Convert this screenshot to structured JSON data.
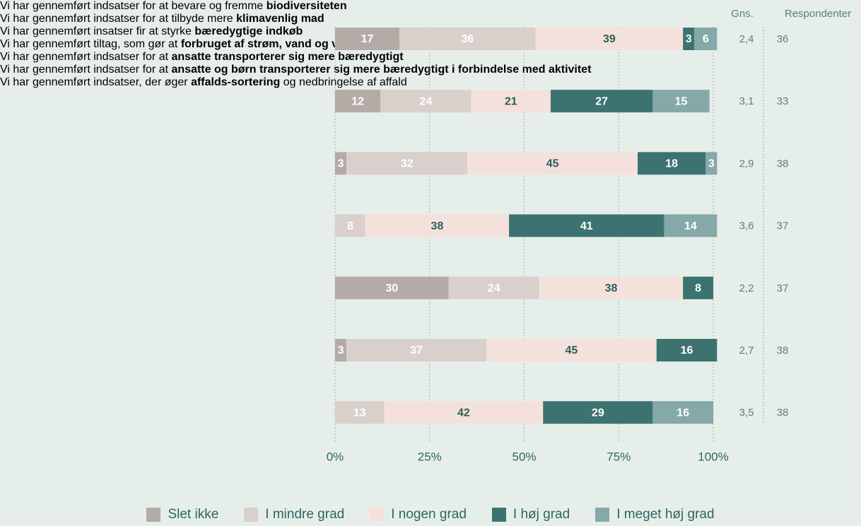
{
  "chart_data": {
    "type": "stacked-barh",
    "categories": [
      [
        "Vi har gennemført indsatser for at bevare og fremme",
        "biodiversiteten"
      ],
      [
        "Vi har gennemført indsatser for at tilbyde mere",
        "klimavenlig mad"
      ],
      [
        "Vi har gennemført insatser fir at styrke",
        "bæredygtige indkøb"
      ],
      [
        "Vi har gennemført tiltag, som gør at",
        "forbruget af strøm, vand og varme er mere klimavenligt"
      ],
      [
        "Vi har gennemført indsatser for at",
        "ansatte transporterer sig mere bæredygtigt"
      ],
      [
        "Vi har gennemført indsatser for at",
        "ansatte og børn transporterer sig mere bæredygtigt i forbindelse med aktivitet"
      ],
      [
        "Vi har gennemført indsatser, der øger",
        "affalds-sortering",
        "og nedbringelse af affald"
      ]
    ],
    "series": [
      {
        "name": "Slet ikke",
        "color": "#b4aba7",
        "label_color": "#ffffff",
        "values": [
          17,
          12,
          3,
          null,
          30,
          3,
          null
        ]
      },
      {
        "name": "I mindre grad",
        "color": "#d9d0cc",
        "label_color": "#ffffff",
        "values": [
          36,
          24,
          32,
          8,
          24,
          37,
          13
        ]
      },
      {
        "name": "I nogen grad",
        "color": "#f5e1db",
        "label_color": "#2d5e5c",
        "values": [
          39,
          21,
          45,
          38,
          38,
          45,
          42
        ]
      },
      {
        "name": "I høj grad",
        "color": "#3c7371",
        "label_color": "#ffffff",
        "values": [
          3,
          27,
          18,
          41,
          8,
          16,
          29
        ]
      },
      {
        "name": "I meget høj grad",
        "color": "#85a8a8",
        "label_color": "#ffffff",
        "values": [
          6,
          15,
          3,
          14,
          null,
          null,
          16
        ]
      }
    ],
    "xlim": [
      0,
      100
    ],
    "xticks": [
      {
        "value": 0,
        "label": "0%"
      },
      {
        "value": 25,
        "label": "25%"
      },
      {
        "value": 50,
        "label": "50%"
      },
      {
        "value": 75,
        "label": "75%"
      },
      {
        "value": 100,
        "label": "100%"
      }
    ],
    "grid": true,
    "mean_header": "Gns.",
    "means": [
      "2,4",
      "3,1",
      "2,9",
      "3,6",
      "2,2",
      "2,7",
      "3,5"
    ],
    "respondents_header": "Respondenter",
    "respondents": [
      36,
      33,
      38,
      37,
      37,
      38,
      38
    ],
    "legend": "bottom"
  }
}
